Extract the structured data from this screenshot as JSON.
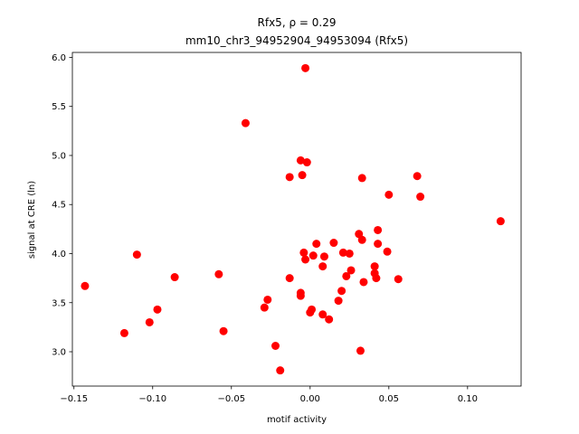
{
  "chart_data": {
    "type": "scatter",
    "title_line1": "Rfx5, ρ = 0.29",
    "title_line2": "mm10_chr3_94952904_94953094 (Rfx5)",
    "xlabel": "motif activity",
    "ylabel": "signal at CRE (ln)",
    "xlim": [
      -0.151,
      0.134
    ],
    "ylim": [
      2.65,
      6.05
    ],
    "xticks": [
      -0.15,
      -0.1,
      -0.05,
      0.0,
      0.05,
      0.1
    ],
    "xtick_labels": [
      "−0.15",
      "−0.10",
      "−0.05",
      "0.00",
      "0.05",
      "0.10"
    ],
    "yticks": [
      3.0,
      3.5,
      4.0,
      4.5,
      5.0,
      5.5,
      6.0
    ],
    "ytick_labels": [
      "3.0",
      "3.5",
      "4.0",
      "4.5",
      "5.0",
      "5.5",
      "6.0"
    ],
    "marker_color": "#ff0000",
    "grid": false,
    "x": [
      -0.143,
      -0.118,
      -0.11,
      -0.102,
      -0.097,
      -0.086,
      -0.058,
      -0.055,
      -0.041,
      -0.029,
      -0.027,
      -0.022,
      -0.019,
      -0.013,
      -0.013,
      -0.006,
      -0.006,
      -0.006,
      -0.005,
      -0.004,
      -0.003,
      -0.003,
      -0.002,
      0.0,
      0.001,
      0.002,
      0.004,
      0.008,
      0.008,
      0.009,
      0.012,
      0.015,
      0.018,
      0.02,
      0.021,
      0.023,
      0.025,
      0.026,
      0.031,
      0.032,
      0.033,
      0.033,
      0.034,
      0.041,
      0.041,
      0.042,
      0.043,
      0.043,
      0.049,
      0.05,
      0.056,
      0.068,
      0.07,
      0.121
    ],
    "y": [
      3.67,
      3.19,
      3.99,
      3.3,
      3.43,
      3.76,
      3.79,
      3.21,
      5.33,
      3.45,
      3.53,
      3.06,
      2.81,
      4.78,
      3.75,
      4.95,
      3.57,
      3.6,
      4.8,
      4.01,
      5.89,
      3.94,
      4.93,
      3.4,
      3.43,
      3.98,
      4.1,
      3.38,
      3.87,
      3.97,
      3.33,
      4.11,
      3.52,
      3.62,
      4.01,
      3.77,
      4.0,
      3.83,
      4.2,
      3.01,
      4.14,
      4.77,
      3.71,
      3.8,
      3.87,
      3.75,
      4.24,
      4.1,
      4.02,
      4.6,
      3.74,
      4.79,
      4.58,
      4.33
    ]
  }
}
